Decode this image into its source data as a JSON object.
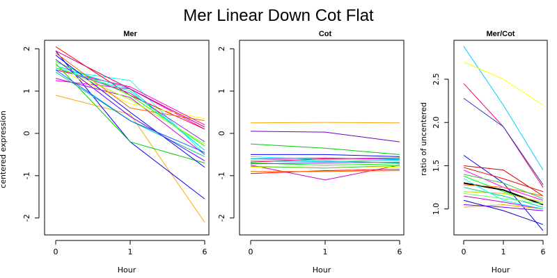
{
  "figure": {
    "title": "Mer Linear Down Cot Flat"
  },
  "chart_data": [
    {
      "type": "line",
      "panel_title": "Mer",
      "ylabel": "centered expression",
      "xlabel": "Hour",
      "x_tick_labels": [
        "0",
        "1",
        "6"
      ],
      "y_ticks": [
        -2,
        -1,
        0,
        1,
        2
      ],
      "ylim": [
        -2.4,
        2.2
      ],
      "series": [
        {
          "color": "#ffa500",
          "values": [
            0.9,
            0.45,
            -2.1
          ]
        },
        {
          "color": "#0000ff",
          "values": [
            1.95,
            -0.2,
            -1.55
          ]
        },
        {
          "color": "#00ffff",
          "values": [
            1.5,
            1.25,
            -0.5
          ]
        },
        {
          "color": "#00cc00",
          "values": [
            1.65,
            -0.2,
            -0.7
          ]
        },
        {
          "color": "#ff00ff",
          "values": [
            1.25,
            1.05,
            0.1
          ]
        },
        {
          "color": "#ff0000",
          "values": [
            2.05,
            0.9,
            0.1
          ]
        },
        {
          "color": "#ffff00",
          "values": [
            1.55,
            0.7,
            0.35
          ]
        },
        {
          "color": "#00ff00",
          "values": [
            1.7,
            0.9,
            -0.3
          ]
        },
        {
          "color": "#ff00cc",
          "values": [
            1.5,
            1.1,
            0.2
          ]
        },
        {
          "color": "#00ccff",
          "values": [
            1.6,
            1.05,
            -0.4
          ]
        },
        {
          "color": "#0000ff",
          "values": [
            1.85,
            0.5,
            -0.8
          ]
        },
        {
          "color": "#8a2be2",
          "values": [
            1.55,
            0.95,
            -0.2
          ]
        },
        {
          "color": "#cc00cc",
          "values": [
            1.3,
            0.85,
            -0.5
          ]
        },
        {
          "color": "#ff6600",
          "values": [
            1.9,
            0.6,
            0.3
          ]
        },
        {
          "color": "#00cc99",
          "values": [
            1.45,
            0.3,
            -0.55
          ]
        },
        {
          "color": "#6600ff",
          "values": [
            1.75,
            0.4,
            -0.65
          ]
        },
        {
          "color": "#00ffaa",
          "values": [
            1.55,
            1.0,
            -0.4
          ]
        },
        {
          "color": "#cc0066",
          "values": [
            1.95,
            1.05,
            0.15
          ]
        },
        {
          "color": "#0066ff",
          "values": [
            1.5,
            0.3,
            -0.45
          ]
        },
        {
          "color": "#99ff00",
          "values": [
            1.6,
            0.8,
            -0.25
          ]
        }
      ]
    },
    {
      "type": "line",
      "panel_title": "Cot",
      "xlabel": "Hour",
      "x_tick_labels": [
        "0",
        "1",
        "6"
      ],
      "y_ticks": [
        -2,
        -1,
        0,
        1,
        2
      ],
      "ylim": [
        -2.4,
        2.2
      ],
      "series": [
        {
          "color": "#ffa500",
          "values": [
            0.25,
            0.26,
            0.25
          ]
        },
        {
          "color": "#6600cc",
          "values": [
            0.05,
            0.03,
            -0.2
          ]
        },
        {
          "color": "#00cc00",
          "values": [
            -0.25,
            -0.35,
            -0.5
          ]
        },
        {
          "color": "#0000ff",
          "values": [
            -0.5,
            -0.5,
            -0.55
          ]
        },
        {
          "color": "#00ffff",
          "values": [
            -0.55,
            -0.62,
            -0.6
          ]
        },
        {
          "color": "#ff00ff",
          "values": [
            -0.6,
            -0.58,
            -0.62
          ]
        },
        {
          "color": "#cc00cc",
          "values": [
            -0.75,
            -1.1,
            -0.75
          ]
        },
        {
          "color": "#ff0000",
          "values": [
            -0.95,
            -0.88,
            -0.85
          ]
        },
        {
          "color": "#00ff00",
          "values": [
            -0.7,
            -0.75,
            -0.72
          ]
        },
        {
          "color": "#ffff00",
          "values": [
            -0.8,
            -0.78,
            -0.8
          ]
        },
        {
          "color": "#00ccff",
          "values": [
            -0.65,
            -0.67,
            -0.63
          ]
        },
        {
          "color": "#8a2be2",
          "values": [
            -0.72,
            -0.7,
            -0.68
          ]
        },
        {
          "color": "#ff6600",
          "values": [
            -0.9,
            -0.9,
            -0.88
          ]
        },
        {
          "color": "#00cc99",
          "values": [
            -0.6,
            -0.65,
            -0.7
          ]
        },
        {
          "color": "#ff0066",
          "values": [
            -0.68,
            -0.6,
            -0.58
          ]
        },
        {
          "color": "#33cc33",
          "values": [
            -0.78,
            -0.82,
            -0.76
          ]
        }
      ]
    },
    {
      "type": "line",
      "panel_title": "Mer/Cot",
      "ylabel": "ratio of uncentered",
      "xlabel": "Hour",
      "x_tick_labels": [
        "0",
        "1",
        "6"
      ],
      "y_ticks": [
        1.0,
        1.5,
        2.0,
        2.5
      ],
      "y_tick_labels": [
        "1.0",
        "1.5",
        "2.0",
        "2.5"
      ],
      "ylim": [
        0.7,
        2.95
      ],
      "series": [
        {
          "color": "#00ccff",
          "values": [
            2.88,
            2.2,
            1.45
          ]
        },
        {
          "color": "#ffff00",
          "values": [
            2.7,
            2.5,
            2.2
          ]
        },
        {
          "color": "#ff0066",
          "values": [
            2.45,
            1.95,
            1.25
          ]
        },
        {
          "color": "#3333cc",
          "values": [
            2.28,
            1.95,
            1.28
          ]
        },
        {
          "color": "#0000ff",
          "values": [
            1.62,
            1.3,
            0.75
          ]
        },
        {
          "color": "#cc0000",
          "values": [
            1.5,
            1.45,
            1.15
          ]
        },
        {
          "color": "#ff00ff",
          "values": [
            1.45,
            1.25,
            1.1
          ]
        },
        {
          "color": "#00ff00",
          "values": [
            1.38,
            1.2,
            1.05
          ]
        },
        {
          "color": "#000000",
          "values": [
            1.3,
            1.22,
            1.05
          ],
          "bold": true
        },
        {
          "color": "#ffa500",
          "values": [
            1.02,
            1.05,
            1.0
          ]
        },
        {
          "color": "#0000cc",
          "values": [
            1.1,
            0.98,
            0.82
          ]
        },
        {
          "color": "#00cc99",
          "values": [
            1.25,
            1.15,
            1.02
          ]
        },
        {
          "color": "#cc00cc",
          "values": [
            1.15,
            1.08,
            1.0
          ]
        },
        {
          "color": "#cccc00",
          "values": [
            1.2,
            1.18,
            1.08
          ]
        },
        {
          "color": "#00ffff",
          "values": [
            1.35,
            1.1,
            1.0
          ]
        },
        {
          "color": "#ff6600",
          "values": [
            1.28,
            1.25,
            1.15
          ]
        },
        {
          "color": "#6600ff",
          "values": [
            1.05,
            1.02,
            0.98
          ]
        },
        {
          "color": "#33cc33",
          "values": [
            1.4,
            1.3,
            1.12
          ]
        },
        {
          "color": "#ff0000",
          "values": [
            1.48,
            1.35,
            1.2
          ]
        },
        {
          "color": "#66ff66",
          "values": [
            1.18,
            1.12,
            1.06
          ]
        }
      ]
    }
  ]
}
